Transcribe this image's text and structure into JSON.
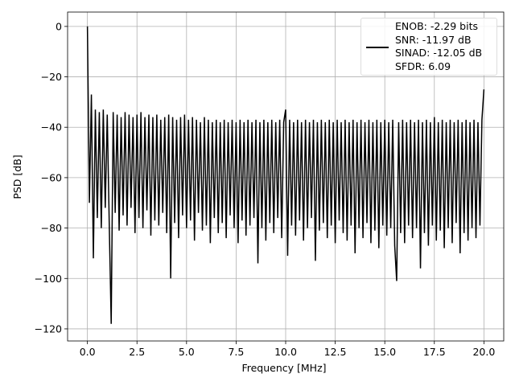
{
  "chart_data": {
    "type": "line",
    "xlabel": "Frequency [MHz]",
    "ylabel": "PSD [dB]",
    "xlim": [
      -1,
      21
    ],
    "ylim": [
      -124.8,
      5.7
    ],
    "xticks": [
      {
        "value": 0,
        "label": "0.0"
      },
      2.5,
      {
        "value": 5,
        "label": "5.0"
      },
      7.5,
      {
        "value": 10,
        "label": "10.0"
      },
      12.5,
      {
        "value": 15,
        "label": "15.0"
      },
      17.5,
      {
        "value": 20,
        "label": "20.0"
      }
    ],
    "yticks": [
      {
        "value": 0,
        "label": "0"
      },
      {
        "value": -20,
        "label": "−20"
      },
      {
        "value": -40,
        "label": "−40"
      },
      {
        "value": -60,
        "label": "−60"
      },
      {
        "value": -80,
        "label": "−80"
      },
      {
        "value": -100,
        "label": "−100"
      },
      {
        "value": -120,
        "label": "−120"
      }
    ],
    "grid": true,
    "legend": "upper right",
    "x": [
      0,
      0.1,
      0.2,
      0.3,
      0.4,
      0.5,
      0.6,
      0.7,
      0.8,
      0.9,
      1,
      1.1,
      1.2,
      1.3,
      1.4,
      1.5,
      1.6,
      1.7,
      1.8,
      1.9,
      2,
      2.1,
      2.2,
      2.3,
      2.4,
      2.5,
      2.6,
      2.7,
      2.8,
      2.9,
      3,
      3.1,
      3.2,
      3.3,
      3.4,
      3.5,
      3.6,
      3.7,
      3.8,
      3.9,
      4,
      4.1,
      4.2,
      4.3,
      4.4,
      4.5,
      4.6,
      4.7,
      4.8,
      4.9,
      5,
      5.1,
      5.2,
      5.3,
      5.4,
      5.5,
      5.6,
      5.7,
      5.8,
      5.9,
      6,
      6.1,
      6.2,
      6.3,
      6.4,
      6.5,
      6.6,
      6.7,
      6.8,
      6.9,
      7,
      7.1,
      7.2,
      7.3,
      7.4,
      7.5,
      7.6,
      7.7,
      7.8,
      7.9,
      8,
      8.1,
      8.2,
      8.3,
      8.4,
      8.5,
      8.6,
      8.7,
      8.8,
      8.9,
      9,
      9.1,
      9.2,
      9.3,
      9.4,
      9.5,
      9.6,
      9.7,
      9.8,
      9.9,
      10,
      10.1,
      10.2,
      10.3,
      10.4,
      10.5,
      10.6,
      10.7,
      10.8,
      10.9,
      11,
      11.1,
      11.2,
      11.3,
      11.4,
      11.5,
      11.6,
      11.7,
      11.8,
      11.9,
      12,
      12.1,
      12.2,
      12.3,
      12.4,
      12.5,
      12.6,
      12.7,
      12.8,
      12.9,
      13,
      13.1,
      13.2,
      13.3,
      13.4,
      13.5,
      13.6,
      13.7,
      13.8,
      13.9,
      14,
      14.1,
      14.2,
      14.3,
      14.4,
      14.5,
      14.6,
      14.7,
      14.8,
      14.9,
      15,
      15.1,
      15.2,
      15.3,
      15.4,
      15.5,
      15.6,
      15.7,
      15.8,
      15.9,
      16,
      16.1,
      16.2,
      16.3,
      16.4,
      16.5,
      16.6,
      16.7,
      16.8,
      16.9,
      17,
      17.1,
      17.2,
      17.3,
      17.4,
      17.5,
      17.6,
      17.7,
      17.8,
      17.9,
      18,
      18.1,
      18.2,
      18.3,
      18.4,
      18.5,
      18.6,
      18.7,
      18.8,
      18.9,
      19,
      19.1,
      19.2,
      19.3,
      19.4,
      19.5,
      19.6,
      19.7,
      19.8,
      19.9,
      20
    ],
    "series": [
      {
        "name": "ENOB: -2.29 bits\nSNR: -11.97 dB\nSINAD: -12.05 dB\nSFDR: 6.09",
        "color": "#000000",
        "values": [
          0,
          -70,
          -27,
          -92,
          -33,
          -76,
          -34,
          -80,
          -33,
          -72,
          -35,
          -78,
          -118,
          -34,
          -74,
          -35,
          -81,
          -36,
          -75,
          -34,
          -79,
          -35,
          -72,
          -36,
          -82,
          -35,
          -76,
          -34,
          -80,
          -36,
          -73,
          -35,
          -83,
          -36,
          -77,
          -35,
          -79,
          -37,
          -74,
          -36,
          -82,
          -35,
          -100,
          -36,
          -78,
          -37,
          -84,
          -36,
          -75,
          -35,
          -80,
          -37,
          -77,
          -36,
          -85,
          -37,
          -74,
          -38,
          -81,
          -36,
          -79,
          -37,
          -86,
          -38,
          -76,
          -37,
          -82,
          -38,
          -78,
          -37,
          -84,
          -38,
          -75,
          -37,
          -80,
          -38,
          -86,
          -37,
          -77,
          -38,
          -83,
          -37,
          -79,
          -38,
          -76,
          -37,
          -94,
          -38,
          -80,
          -37,
          -85,
          -38,
          -78,
          -37,
          -82,
          -38,
          -76,
          -37,
          -84,
          -38,
          -33,
          -91,
          -37,
          -79,
          -38,
          -83,
          -37,
          -77,
          -38,
          -85,
          -37,
          -80,
          -38,
          -76,
          -37,
          -93,
          -38,
          -81,
          -37,
          -78,
          -38,
          -84,
          -37,
          -79,
          -38,
          -86,
          -37,
          -77,
          -38,
          -82,
          -37,
          -85,
          -38,
          -79,
          -37,
          -90,
          -38,
          -80,
          -37,
          -84,
          -38,
          -78,
          -37,
          -86,
          -38,
          -81,
          -37,
          -88,
          -38,
          -79,
          -37,
          -83,
          -38,
          -80,
          -37,
          -87,
          -101,
          -38,
          -82,
          -37,
          -86,
          -38,
          -79,
          -37,
          -84,
          -38,
          -80,
          -37,
          -96,
          -38,
          -82,
          -37,
          -87,
          -38,
          -79,
          -36,
          -85,
          -38,
          -81,
          -37,
          -88,
          -38,
          -80,
          -37,
          -86,
          -38,
          -78,
          -37,
          -90,
          -38,
          -82,
          -37,
          -85,
          -38,
          -80,
          -37,
          -84,
          -38,
          -79,
          -37,
          -25
        ]
      }
    ]
  }
}
